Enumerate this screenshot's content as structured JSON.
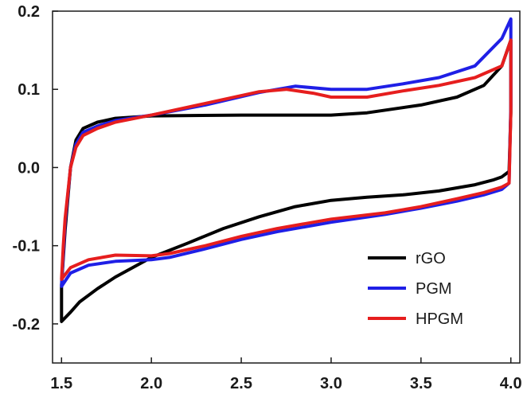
{
  "chart_data": {
    "type": "line",
    "title": "",
    "xlabel": "",
    "ylabel": "",
    "xlim": [
      1.45,
      4.05
    ],
    "ylim": [
      -0.25,
      0.2
    ],
    "x_ticks": [
      "1.5",
      "2.0",
      "2.5",
      "3.0",
      "3.5",
      "4.0"
    ],
    "y_ticks": [
      "0.2",
      "0.1",
      "0.0",
      "-0.1",
      "-0.2"
    ],
    "grid": false,
    "legend_position": "bottom-right",
    "series": [
      {
        "name": "rGO",
        "color": "#000000",
        "points": [
          [
            1.5,
            -0.197
          ],
          [
            1.5,
            -0.15
          ],
          [
            1.52,
            -0.08
          ],
          [
            1.55,
            0.0
          ],
          [
            1.58,
            0.035
          ],
          [
            1.62,
            0.05
          ],
          [
            1.7,
            0.058
          ],
          [
            1.8,
            0.063
          ],
          [
            2.0,
            0.066
          ],
          [
            2.5,
            0.067
          ],
          [
            2.8,
            0.067
          ],
          [
            3.0,
            0.067
          ],
          [
            3.2,
            0.07
          ],
          [
            3.5,
            0.08
          ],
          [
            3.7,
            0.09
          ],
          [
            3.85,
            0.105
          ],
          [
            3.95,
            0.13
          ],
          [
            4.0,
            0.163
          ],
          [
            4.0,
            0.07
          ],
          [
            3.99,
            -0.005
          ],
          [
            3.95,
            -0.012
          ],
          [
            3.9,
            -0.016
          ],
          [
            3.8,
            -0.022
          ],
          [
            3.6,
            -0.03
          ],
          [
            3.4,
            -0.035
          ],
          [
            3.2,
            -0.038
          ],
          [
            3.0,
            -0.042
          ],
          [
            2.8,
            -0.05
          ],
          [
            2.6,
            -0.063
          ],
          [
            2.4,
            -0.078
          ],
          [
            2.2,
            -0.097
          ],
          [
            2.0,
            -0.115
          ],
          [
            1.8,
            -0.14
          ],
          [
            1.7,
            -0.155
          ],
          [
            1.6,
            -0.172
          ],
          [
            1.55,
            -0.185
          ],
          [
            1.5,
            -0.197
          ]
        ]
      },
      {
        "name": "PGM",
        "color": "#1f1fe6",
        "points": [
          [
            1.5,
            -0.152
          ],
          [
            1.51,
            -0.11
          ],
          [
            1.52,
            -0.07
          ],
          [
            1.55,
            0.0
          ],
          [
            1.58,
            0.03
          ],
          [
            1.62,
            0.045
          ],
          [
            1.7,
            0.053
          ],
          [
            1.8,
            0.06
          ],
          [
            2.0,
            0.067
          ],
          [
            2.3,
            0.08
          ],
          [
            2.6,
            0.096
          ],
          [
            2.8,
            0.104
          ],
          [
            3.0,
            0.1
          ],
          [
            3.2,
            0.1
          ],
          [
            3.4,
            0.107
          ],
          [
            3.6,
            0.115
          ],
          [
            3.8,
            0.13
          ],
          [
            3.95,
            0.165
          ],
          [
            4.0,
            0.19
          ],
          [
            4.0,
            0.08
          ],
          [
            3.99,
            -0.02
          ],
          [
            3.95,
            -0.028
          ],
          [
            3.85,
            -0.035
          ],
          [
            3.7,
            -0.043
          ],
          [
            3.5,
            -0.052
          ],
          [
            3.3,
            -0.06
          ],
          [
            3.0,
            -0.07
          ],
          [
            2.7,
            -0.082
          ],
          [
            2.5,
            -0.092
          ],
          [
            2.3,
            -0.104
          ],
          [
            2.1,
            -0.115
          ],
          [
            2.0,
            -0.118
          ],
          [
            1.8,
            -0.12
          ],
          [
            1.65,
            -0.125
          ],
          [
            1.55,
            -0.135
          ],
          [
            1.5,
            -0.152
          ]
        ]
      },
      {
        "name": "HPGM",
        "color": "#e61e1e",
        "points": [
          [
            1.5,
            -0.143
          ],
          [
            1.51,
            -0.1
          ],
          [
            1.52,
            -0.065
          ],
          [
            1.55,
            0.0
          ],
          [
            1.58,
            0.026
          ],
          [
            1.62,
            0.041
          ],
          [
            1.7,
            0.05
          ],
          [
            1.8,
            0.058
          ],
          [
            2.0,
            0.067
          ],
          [
            2.3,
            0.082
          ],
          [
            2.6,
            0.097
          ],
          [
            2.75,
            0.1
          ],
          [
            2.9,
            0.095
          ],
          [
            3.0,
            0.09
          ],
          [
            3.2,
            0.09
          ],
          [
            3.4,
            0.098
          ],
          [
            3.6,
            0.105
          ],
          [
            3.8,
            0.115
          ],
          [
            3.95,
            0.13
          ],
          [
            4.0,
            0.163
          ],
          [
            4.0,
            0.07
          ],
          [
            3.99,
            -0.02
          ],
          [
            3.95,
            -0.025
          ],
          [
            3.85,
            -0.032
          ],
          [
            3.7,
            -0.04
          ],
          [
            3.5,
            -0.05
          ],
          [
            3.3,
            -0.058
          ],
          [
            3.0,
            -0.066
          ],
          [
            2.7,
            -0.078
          ],
          [
            2.5,
            -0.088
          ],
          [
            2.3,
            -0.1
          ],
          [
            2.1,
            -0.11
          ],
          [
            2.0,
            -0.113
          ],
          [
            1.8,
            -0.112
          ],
          [
            1.65,
            -0.118
          ],
          [
            1.55,
            -0.128
          ],
          [
            1.5,
            -0.143
          ]
        ]
      }
    ]
  }
}
